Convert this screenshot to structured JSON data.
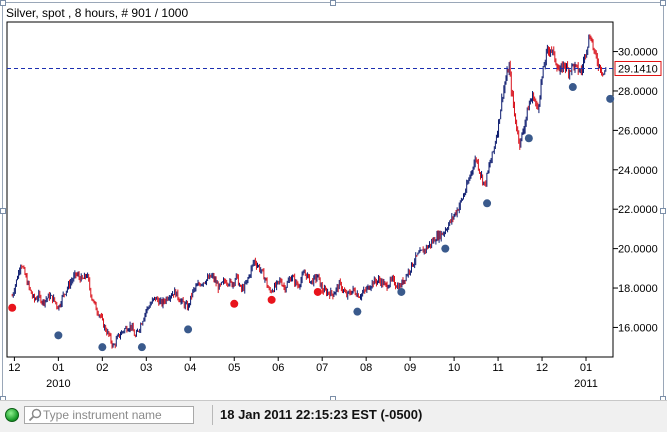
{
  "chart_data": {
    "type": "candlestick",
    "title": "Silver, spot , 8 hours, # 901 / 1000",
    "current_price_label": "29.1410",
    "current_price": 29.141,
    "ylim": [
      14.5,
      31.5
    ],
    "y_ticks": [
      "16.0000",
      "18.0000",
      "20.0000",
      "22.0000",
      "24.0000",
      "26.0000",
      "28.0000",
      "30.0000"
    ],
    "y_tick_values": [
      16,
      18,
      20,
      22,
      24,
      26,
      28,
      30
    ],
    "x_ticks": [
      {
        "label": "12",
        "pos": 0.0
      },
      {
        "label": "01",
        "pos": 1.0
      },
      {
        "label": "02",
        "pos": 2.0
      },
      {
        "label": "03",
        "pos": 3.0
      },
      {
        "label": "04",
        "pos": 4.0
      },
      {
        "label": "05",
        "pos": 5.0
      },
      {
        "label": "06",
        "pos": 6.0
      },
      {
        "label": "07",
        "pos": 7.0
      },
      {
        "label": "08",
        "pos": 8.0
      },
      {
        "label": "09",
        "pos": 9.0
      },
      {
        "label": "10",
        "pos": 10.0
      },
      {
        "label": "11",
        "pos": 11.0
      },
      {
        "label": "12",
        "pos": 12.0
      },
      {
        "label": "01",
        "pos": 13.0
      }
    ],
    "year_labels": [
      {
        "label": "2010",
        "pos": 1.0
      },
      {
        "label": "2011",
        "pos": 13.0
      }
    ],
    "x_range": [
      -0.1,
      13.5
    ],
    "price_path": [
      [
        -0.05,
        17.6
      ],
      [
        0.05,
        18.4
      ],
      [
        0.15,
        19.3
      ],
      [
        0.25,
        18.6
      ],
      [
        0.35,
        17.9
      ],
      [
        0.45,
        17.4
      ],
      [
        0.55,
        17.6
      ],
      [
        0.65,
        17.3
      ],
      [
        0.8,
        17.6
      ],
      [
        0.9,
        17.4
      ],
      [
        1.0,
        17.0
      ],
      [
        1.1,
        17.6
      ],
      [
        1.25,
        18.2
      ],
      [
        1.4,
        18.7
      ],
      [
        1.55,
        18.4
      ],
      [
        1.65,
        18.7
      ],
      [
        1.75,
        17.6
      ],
      [
        1.85,
        17.0
      ],
      [
        1.95,
        16.6
      ],
      [
        2.05,
        16.0
      ],
      [
        2.15,
        15.6
      ],
      [
        2.25,
        15.0
      ],
      [
        2.35,
        15.5
      ],
      [
        2.5,
        15.9
      ],
      [
        2.65,
        16.1
      ],
      [
        2.75,
        15.5
      ],
      [
        2.9,
        16.3
      ],
      [
        3.0,
        16.9
      ],
      [
        3.1,
        17.2
      ],
      [
        3.2,
        17.5
      ],
      [
        3.35,
        17.2
      ],
      [
        3.5,
        17.6
      ],
      [
        3.65,
        17.8
      ],
      [
        3.8,
        17.3
      ],
      [
        3.95,
        17.0
      ],
      [
        4.05,
        17.8
      ],
      [
        4.2,
        18.2
      ],
      [
        4.35,
        18.4
      ],
      [
        4.5,
        18.6
      ],
      [
        4.65,
        18.0
      ],
      [
        4.8,
        18.4
      ],
      [
        4.95,
        18.2
      ],
      [
        5.05,
        18.6
      ],
      [
        5.15,
        17.9
      ],
      [
        5.25,
        18.1
      ],
      [
        5.35,
        18.7
      ],
      [
        5.45,
        19.4
      ],
      [
        5.55,
        19.1
      ],
      [
        5.7,
        18.5
      ],
      [
        5.8,
        17.8
      ],
      [
        5.95,
        18.1
      ],
      [
        6.05,
        18.4
      ],
      [
        6.15,
        18.0
      ],
      [
        6.3,
        18.6
      ],
      [
        6.45,
        18.1
      ],
      [
        6.6,
        18.8
      ],
      [
        6.75,
        18.3
      ],
      [
        6.9,
        18.6
      ],
      [
        7.0,
        17.9
      ],
      [
        7.1,
        17.8
      ],
      [
        7.25,
        17.7
      ],
      [
        7.4,
        18.2
      ],
      [
        7.55,
        17.6
      ],
      [
        7.7,
        17.9
      ],
      [
        7.85,
        17.6
      ],
      [
        8.0,
        17.9
      ],
      [
        8.15,
        18.3
      ],
      [
        8.3,
        18.4
      ],
      [
        8.45,
        18.1
      ],
      [
        8.6,
        18.4
      ],
      [
        8.75,
        18.0
      ],
      [
        8.9,
        18.6
      ],
      [
        9.0,
        19.0
      ],
      [
        9.15,
        19.6
      ],
      [
        9.3,
        19.9
      ],
      [
        9.45,
        20.2
      ],
      [
        9.6,
        20.6
      ],
      [
        9.75,
        20.8
      ],
      [
        9.9,
        21.3
      ],
      [
        10.0,
        21.7
      ],
      [
        10.1,
        22.1
      ],
      [
        10.2,
        22.6
      ],
      [
        10.3,
        23.2
      ],
      [
        10.4,
        24.0
      ],
      [
        10.5,
        24.6
      ],
      [
        10.6,
        23.8
      ],
      [
        10.7,
        23.2
      ],
      [
        10.8,
        24.2
      ],
      [
        10.9,
        25.0
      ],
      [
        11.0,
        26.2
      ],
      [
        11.1,
        27.8
      ],
      [
        11.2,
        28.8
      ],
      [
        11.25,
        29.3
      ],
      [
        11.3,
        28.1
      ],
      [
        11.4,
        26.4
      ],
      [
        11.5,
        25.3
      ],
      [
        11.6,
        26.3
      ],
      [
        11.7,
        27.3
      ],
      [
        11.8,
        27.8
      ],
      [
        11.9,
        27.0
      ],
      [
        12.0,
        28.7
      ],
      [
        12.1,
        29.9
      ],
      [
        12.2,
        30.2
      ],
      [
        12.3,
        29.6
      ],
      [
        12.4,
        28.9
      ],
      [
        12.5,
        29.4
      ],
      [
        12.6,
        29.0
      ],
      [
        12.7,
        29.3
      ],
      [
        12.8,
        29.1
      ],
      [
        12.9,
        29.0
      ],
      [
        13.0,
        30.1
      ],
      [
        13.1,
        30.9
      ],
      [
        13.2,
        29.8
      ],
      [
        13.3,
        29.3
      ],
      [
        13.4,
        28.9
      ],
      [
        13.45,
        29.1
      ]
    ],
    "markers": [
      {
        "x": -0.05,
        "y": 17.0,
        "color": "red"
      },
      {
        "x": 1.0,
        "y": 15.6,
        "color": "blue"
      },
      {
        "x": 2.0,
        "y": 15.0,
        "color": "blue"
      },
      {
        "x": 2.9,
        "y": 15.0,
        "color": "blue"
      },
      {
        "x": 3.95,
        "y": 15.9,
        "color": "blue"
      },
      {
        "x": 5.0,
        "y": 17.2,
        "color": "red"
      },
      {
        "x": 5.85,
        "y": 17.4,
        "color": "red"
      },
      {
        "x": 6.9,
        "y": 17.8,
        "color": "red"
      },
      {
        "x": 7.8,
        "y": 16.8,
        "color": "blue"
      },
      {
        "x": 8.8,
        "y": 17.8,
        "color": "blue"
      },
      {
        "x": 9.8,
        "y": 20.0,
        "color": "blue"
      },
      {
        "x": 10.75,
        "y": 22.3,
        "color": "blue"
      },
      {
        "x": 11.7,
        "y": 25.6,
        "color": "blue"
      },
      {
        "x": 12.7,
        "y": 28.2,
        "color": "blue"
      },
      {
        "x": 13.55,
        "y": 27.6,
        "color": "blue"
      }
    ],
    "colors": {
      "up": "#0b1a6e",
      "down": "#d8101a",
      "marker_red": "#e8141c",
      "marker_blue": "#3a5a8c",
      "dash_line": "#1c2fb0",
      "price_box_border": "#e01010"
    }
  },
  "search": {
    "placeholder": "Type instrument name"
  },
  "status": {
    "datetime": "18 Jan 2011 22:15:23  EST (-0500)"
  }
}
